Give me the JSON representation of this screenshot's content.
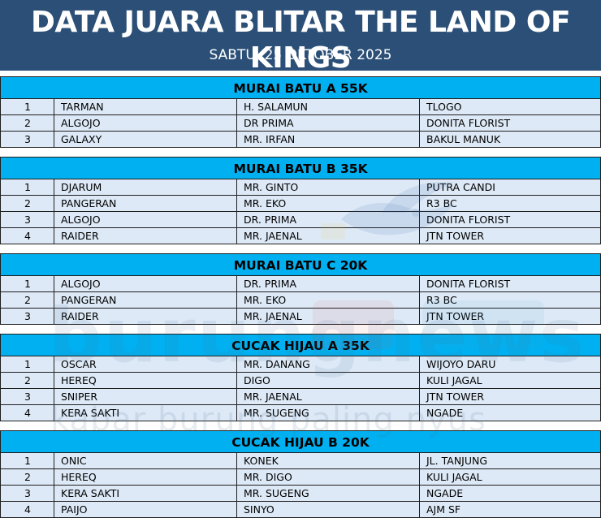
{
  "header": {
    "title": "DATA JUARA BLITAR THE LAND OF KINGS",
    "subtitle": "SABTU, 25 OKTOBER 2025"
  },
  "watermark": {
    "logo": "burungnews",
    "tagline": "kabar burung paling nyus"
  },
  "colors": {
    "header_bg": "#2b4f76",
    "section_header_bg": "#00b0f0",
    "row_bg": "#dde9f6"
  },
  "sections": [
    {
      "title": "MURAI BATU A 55K",
      "rows": [
        {
          "rank": "1",
          "bird": "TARMAN",
          "owner": "H. SALAMUN",
          "team": "TLOGO"
        },
        {
          "rank": "2",
          "bird": "ALGOJO",
          "owner": "DR PRIMA",
          "team": "DONITA FLORIST"
        },
        {
          "rank": "3",
          "bird": "GALAXY",
          "owner": "MR. IRFAN",
          "team": "BAKUL MANUK"
        }
      ]
    },
    {
      "title": "MURAI BATU B 35K",
      "rows": [
        {
          "rank": "1",
          "bird": "DJARUM",
          "owner": "MR. GINTO",
          "team": "PUTRA CANDI"
        },
        {
          "rank": "2",
          "bird": "PANGERAN",
          "owner": "MR. EKO",
          "team": "R3 BC"
        },
        {
          "rank": "3",
          "bird": "ALGOJO",
          "owner": "DR. PRIMA",
          "team": "DONITA FLORIST"
        },
        {
          "rank": "4",
          "bird": "RAIDER",
          "owner": "MR. JAENAL",
          "team": "JTN TOWER"
        }
      ]
    },
    {
      "title": "MURAI BATU C 20K",
      "rows": [
        {
          "rank": "1",
          "bird": "ALGOJO",
          "owner": "DR. PRIMA",
          "team": "DONITA FLORIST"
        },
        {
          "rank": "2",
          "bird": "PANGERAN",
          "owner": "MR. EKO",
          "team": "R3 BC"
        },
        {
          "rank": "3",
          "bird": "RAIDER",
          "owner": "MR. JAENAL",
          "team": "JTN TOWER"
        }
      ]
    },
    {
      "title": "CUCAK HIJAU A 35K",
      "rows": [
        {
          "rank": "1",
          "bird": "OSCAR",
          "owner": "MR. DANANG",
          "team": "WIJOYO DARU"
        },
        {
          "rank": "2",
          "bird": "HEREQ",
          "owner": "DIGO",
          "team": "KULI JAGAL"
        },
        {
          "rank": "3",
          "bird": "SNIPER",
          "owner": "MR. JAENAL",
          "team": "JTN TOWER"
        },
        {
          "rank": "4",
          "bird": "KERA SAKTI",
          "owner": "MR. SUGENG",
          "team": "NGADE"
        }
      ]
    },
    {
      "title": "CUCAK HIJAU B 20K",
      "rows": [
        {
          "rank": "1",
          "bird": "ONIC",
          "owner": "KONEK",
          "team": "JL. TANJUNG"
        },
        {
          "rank": "2",
          "bird": "HEREQ",
          "owner": "MR. DIGO",
          "team": "KULI JAGAL"
        },
        {
          "rank": "3",
          "bird": "KERA SAKTI",
          "owner": "MR. SUGENG",
          "team": "NGADE"
        },
        {
          "rank": "4",
          "bird": "PAIJO",
          "owner": "SINYO",
          "team": "AJM SF"
        }
      ]
    }
  ]
}
